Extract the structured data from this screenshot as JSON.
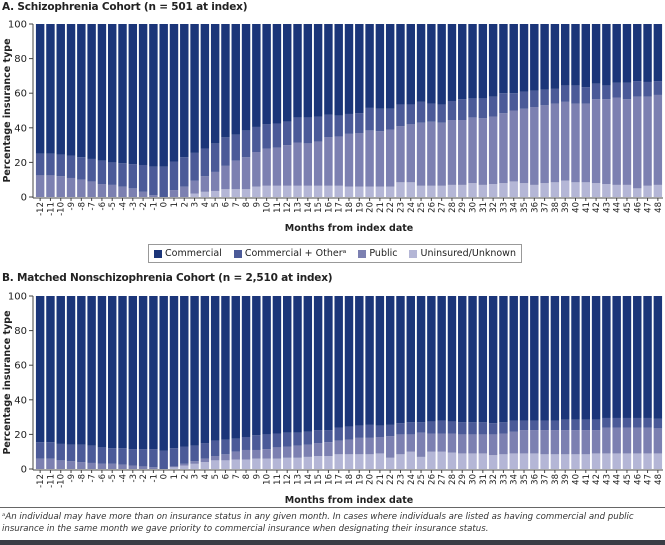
{
  "colors": {
    "commercial": "#1b3579",
    "commercial_other": "#4b5a98",
    "public": "#7c80b1",
    "uninsured": "#b4b6d6"
  },
  "legend": [
    "Commercial",
    "Commercial + Otherᵃ",
    "Public",
    "Uninsured/Unknown"
  ],
  "footnote": "ᵃAn individual may have more than on insurance status in any given month. In cases where individuals are listed as having commercial and public insurance in the same month we gave priority to commercial insurance when designating their insurance status.",
  "chart_data": [
    {
      "type": "bar",
      "stacked": true,
      "title": "A. Schizophrenia Cohort (n = 501 at index)",
      "xlabel": "Months from index date",
      "ylabel": "Percentage insurance type",
      "ylim": [
        0,
        100
      ],
      "yticks": [
        "0",
        "20",
        "40",
        "60",
        "80",
        "100"
      ],
      "categories": [
        "-12",
        "-11",
        "-10",
        "-9",
        "-8",
        "-7",
        "-6",
        "-5",
        "-4",
        "-3",
        "-2",
        "-1",
        "0",
        "1",
        "2",
        "3",
        "4",
        "5",
        "6",
        "7",
        "8",
        "9",
        "10",
        "11",
        "12",
        "13",
        "14",
        "15",
        "16",
        "17",
        "18",
        "19",
        "20",
        "21",
        "22",
        "23",
        "24",
        "25",
        "26",
        "27",
        "28",
        "29",
        "30",
        "31",
        "32",
        "33",
        "34",
        "35",
        "36",
        "37",
        "38",
        "39",
        "40",
        "41",
        "42",
        "43",
        "44",
        "45",
        "46",
        "47",
        "48"
      ],
      "series": [
        {
          "name": "Uninsured/Unknown",
          "values": [
            0,
            0,
            0,
            0,
            0,
            0,
            0,
            0,
            0,
            0,
            0,
            0,
            0,
            0,
            0,
            2,
            3,
            3.5,
            4.5,
            4.5,
            4.5,
            6,
            6.5,
            6.5,
            6.5,
            6.5,
            6.5,
            6.5,
            6.5,
            6.5,
            6,
            6,
            6,
            6,
            6,
            8.5,
            8.5,
            6.5,
            6.5,
            6.5,
            7,
            7,
            8,
            7,
            7.5,
            8,
            9,
            8,
            7,
            8,
            8.5,
            9.5,
            8.5,
            8.5,
            8,
            7.5,
            7,
            7,
            5,
            6.5,
            7
          ]
        },
        {
          "name": "Public",
          "values": [
            12.5,
            12.5,
            12,
            11,
            10,
            9,
            7.5,
            7,
            6,
            5,
            3,
            1,
            0,
            4,
            6,
            7.5,
            9,
            11,
            13.5,
            16.5,
            18.5,
            20,
            21.5,
            22,
            23.5,
            25,
            24.5,
            25.5,
            28,
            28.5,
            30.5,
            31,
            32.5,
            32,
            33,
            32.5,
            33.5,
            36.5,
            37,
            36.5,
            37.5,
            37.5,
            38,
            38.5,
            39,
            40.5,
            41,
            43,
            45,
            45,
            45.5,
            45.5,
            45.5,
            45.5,
            48.5,
            49,
            50.5,
            49.5,
            53,
            51.5,
            52
          ]
        },
        {
          "name": "Commercial + Other",
          "values": [
            12.5,
            12.5,
            12.5,
            13,
            13,
            13,
            13.5,
            13,
            13.5,
            14,
            15.5,
            16.5,
            17.5,
            16.5,
            17,
            16,
            16,
            16.5,
            16.5,
            15,
            15.5,
            14.5,
            14,
            14,
            13.5,
            14.5,
            15,
            14.5,
            13,
            12,
            11.5,
            11.5,
            13,
            13,
            12,
            12.5,
            11.5,
            12,
            10.5,
            10.5,
            11,
            12,
            11,
            11.5,
            11.5,
            11.5,
            10,
            10,
            9.5,
            9,
            8.5,
            9.5,
            10.5,
            9.5,
            9,
            8,
            8.5,
            9.5,
            9,
            8.5,
            8
          ]
        },
        {
          "name": "Commercial",
          "values": [
            75,
            75,
            75.5,
            76,
            77,
            78,
            79,
            80,
            80.5,
            81,
            81.5,
            82.5,
            82.5,
            79.5,
            77,
            74.5,
            72,
            69,
            65.5,
            64,
            61.5,
            59.5,
            58,
            57.5,
            56.5,
            54,
            54,
            53.5,
            52.5,
            53,
            52,
            51.5,
            48.5,
            49,
            49,
            46.5,
            46.5,
            45,
            46,
            46.5,
            44.5,
            43.5,
            43,
            43,
            42,
            40,
            40,
            39,
            38.5,
            38,
            37.5,
            35.5,
            35.5,
            36.5,
            34.5,
            35.5,
            34,
            34,
            33,
            33.5,
            33
          ]
        }
      ]
    },
    {
      "type": "bar",
      "stacked": true,
      "title": "B. Matched Nonschizophrenia Cohort (n = 2,510 at index)",
      "xlabel": "Months from index date",
      "ylabel": "Percentage insurance type",
      "ylim": [
        0,
        100
      ],
      "yticks": [
        "0",
        "20",
        "40",
        "60",
        "80",
        "100"
      ],
      "categories": [
        "-12",
        "-11",
        "-10",
        "-9",
        "-8",
        "-7",
        "-6",
        "-5",
        "-4",
        "-3",
        "-2",
        "-1",
        "0",
        "1",
        "2",
        "3",
        "4",
        "5",
        "6",
        "7",
        "8",
        "9",
        "10",
        "11",
        "12",
        "13",
        "14",
        "15",
        "16",
        "17",
        "18",
        "19",
        "20",
        "21",
        "22",
        "23",
        "24",
        "25",
        "26",
        "27",
        "28",
        "29",
        "30",
        "31",
        "32",
        "33",
        "34",
        "35",
        "36",
        "37",
        "38",
        "39",
        "40",
        "41",
        "42",
        "43",
        "44",
        "45",
        "46",
        "47",
        "48"
      ],
      "series": [
        {
          "name": "Uninsured/Unknown",
          "values": [
            0,
            0,
            0,
            0,
            0,
            0,
            0,
            0,
            0,
            0,
            0,
            0,
            0,
            1,
            2,
            3,
            4,
            5,
            5,
            5.5,
            5.5,
            6,
            6,
            6,
            6.5,
            6.5,
            7,
            7.5,
            7.5,
            8.5,
            8.5,
            8.5,
            8.5,
            9,
            6.5,
            8.5,
            10,
            7,
            10,
            10,
            9.5,
            9,
            9,
            9,
            8,
            8.5,
            9,
            9,
            9,
            8.5,
            8.5,
            8.5,
            8.5,
            8.5,
            9,
            9,
            9,
            9,
            9,
            9,
            9
          ]
        },
        {
          "name": "Public",
          "values": [
            6,
            6,
            5,
            4.5,
            4,
            3.5,
            3,
            3,
            2.5,
            2,
            1.5,
            1,
            0,
            0.5,
            1,
            1.5,
            2,
            2.5,
            3.5,
            4.5,
            5.5,
            5,
            5.5,
            6.5,
            6.5,
            7,
            7,
            7.5,
            8,
            8,
            8.5,
            9.5,
            9.5,
            9.5,
            12.5,
            11.5,
            10,
            14,
            10.5,
            10.5,
            11,
            11,
            11,
            11,
            12,
            12,
            12.5,
            13.5,
            13.5,
            14,
            14,
            14,
            14,
            14,
            13.5,
            15,
            15,
            15,
            15,
            15,
            14.5
          ]
        },
        {
          "name": "Commercial + Other",
          "values": [
            9.5,
            9.5,
            9.5,
            9.5,
            10,
            10,
            9.5,
            9,
            9.5,
            9.5,
            10,
            10.5,
            10.5,
            10.5,
            10,
            9,
            9,
            9,
            8.5,
            7.5,
            7.5,
            8.5,
            8.5,
            8,
            8,
            7.5,
            7.5,
            7.5,
            7,
            7.5,
            7.5,
            7,
            7.5,
            6.5,
            6.5,
            6.5,
            7,
            6,
            7,
            7.5,
            7,
            7,
            7,
            7,
            6.5,
            6.5,
            6.5,
            5.5,
            5.5,
            5.5,
            5.5,
            6,
            6,
            6,
            6,
            5.5,
            5.5,
            5.5,
            5.5,
            5.5,
            5.5
          ]
        },
        {
          "name": "Commercial",
          "values": [
            84.5,
            84.5,
            85.5,
            86,
            86,
            86.5,
            87.5,
            88,
            88,
            88.5,
            88.5,
            88.5,
            89.5,
            88,
            87,
            86.5,
            85,
            83.5,
            83,
            82.5,
            81.5,
            80.5,
            80,
            79.5,
            79,
            79,
            78.5,
            77.5,
            77.5,
            76,
            75.5,
            75,
            74.5,
            75,
            74.5,
            73.5,
            73,
            73,
            72.5,
            72,
            72.5,
            73,
            73,
            73,
            73.5,
            73,
            72,
            72,
            72,
            72,
            72,
            71.5,
            71.5,
            71.5,
            71.5,
            70.5,
            70.5,
            70.5,
            70.5,
            70.5,
            71
          ]
        }
      ]
    }
  ]
}
